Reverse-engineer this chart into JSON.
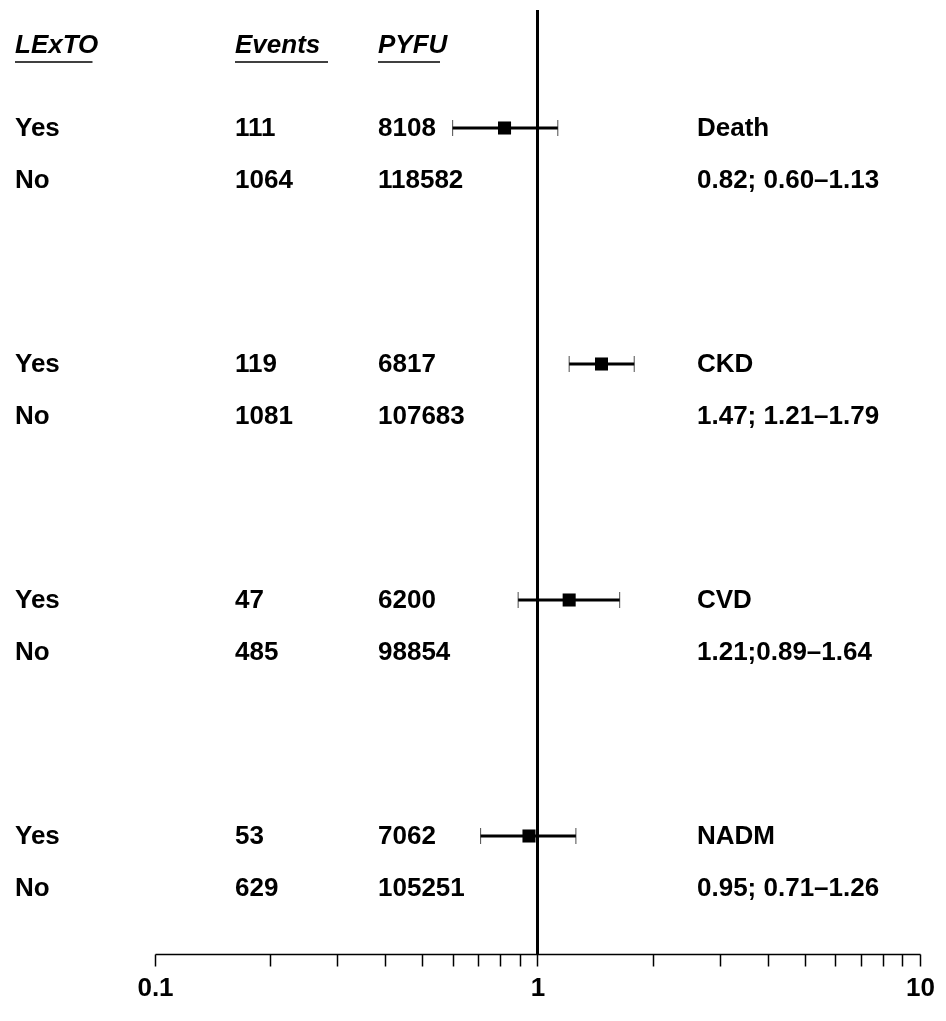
{
  "chart_data": {
    "type": "scatter",
    "orientation": "horizontal",
    "categories": [
      "Death",
      "CKD",
      "CVD",
      "NADM"
    ],
    "series": [
      {
        "color": "#000000",
        "values": [
          0.82,
          1.47,
          1.21,
          0.95
        ],
        "errors": [
          [
            0.6,
            1.13
          ],
          [
            1.21,
            1.79
          ],
          [
            0.89,
            1.64
          ],
          [
            0.71,
            1.26
          ]
        ]
      }
    ],
    "marker": "square",
    "log": "x",
    "xlim": [
      0.1,
      10
    ],
    "xticks": [
      0.1,
      {
        "value": 0.2,
        "label": null
      },
      {
        "value": 0.3,
        "label": null
      },
      {
        "value": 0.4,
        "label": null
      },
      {
        "value": 0.5,
        "label": null
      },
      {
        "value": 0.6,
        "label": null
      },
      {
        "value": 0.7,
        "label": null
      },
      {
        "value": 0.8,
        "label": null
      },
      {
        "value": 0.9,
        "label": null
      },
      1,
      {
        "value": 2,
        "label": null
      },
      {
        "value": 3,
        "label": null
      },
      {
        "value": 4,
        "label": null
      },
      {
        "value": 5,
        "label": null
      },
      {
        "value": 6,
        "label": null
      },
      {
        "value": 7,
        "label": null
      },
      {
        "value": 8,
        "label": null
      },
      {
        "value": 9,
        "label": null
      },
      10
    ],
    "ref_lines": [
      {
        "axis": "x",
        "value": 1,
        "color": "#000000"
      }
    ],
    "annotations": [
      "LExTO",
      "Events",
      "PYFU",
      "Yes",
      "111",
      "8108",
      "No",
      "1064",
      "118582",
      "Yes",
      "119",
      "6817",
      "No",
      "1081",
      "107683",
      "Yes",
      "47",
      "6200",
      "No",
      "485",
      "98854",
      "Yes",
      "53",
      "7062",
      "No",
      "629",
      "105251",
      "0.82; 0.60–1.13",
      "1.47; 1.21–1.79",
      "1.21;0.89–1.64",
      "0.95; 0.71–1.26"
    ]
  }
}
